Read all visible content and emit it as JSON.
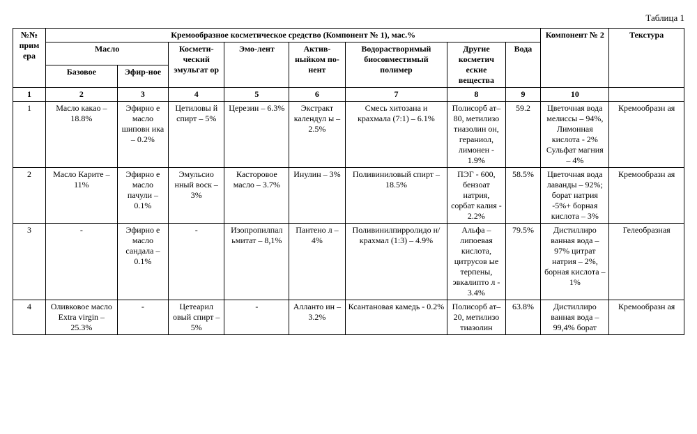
{
  "caption": "Таблица 1",
  "table": {
    "header": {
      "row1": {
        "num": "№№ прим ера",
        "component1": "Кремообразное косметическое средство (Компонент № 1), мас.%",
        "component2": "Компонент № 2",
        "texture": "Текстура"
      },
      "row2": {
        "oil": "Масло",
        "emulsifier": "Космети-ческий эмульгат ор",
        "emollient": "Эмо-лент",
        "active": "Актив-ныйком по-нент",
        "polymer": "Водорастворимый биосовместимый полимер",
        "other": "Другие косметич еские вещества",
        "water": "Вода"
      },
      "row3": {
        "base": "Базовое",
        "essential": "Эфир-ное"
      },
      "numrow": {
        "c1": "1",
        "c2": "2",
        "c3": "3",
        "c4": "4",
        "c5": "5",
        "c6": "6",
        "c7": "7",
        "c8": "8",
        "c9": "9",
        "c10": "10",
        "c11": ""
      }
    },
    "rows": [
      {
        "n": "1",
        "base": "Масло какао – 18.8%",
        "essential": "Эфирно е масло шиповн ика – 0.2%",
        "emulsifier": "Цетиловы й спирт – 5%",
        "emollient": "Церезин – 6.3%",
        "active": "Экстракт календул ы – 2.5%",
        "polymer": "Смесь хитозана и крахмала (7:1) – 6.1%",
        "other": "Полисорб ат–80, метилизо тиазолин он, гераниол, лимонен - 1.9%",
        "water": "59.2",
        "comp2": "Цветочная вода мелиссы – 94%, Лимонная кислота - 2% Сульфат магния – 4%",
        "texture": "Кремообразн ая"
      },
      {
        "n": "2",
        "base": "Масло Карите – 11%",
        "essential": "Эфирно е масло пачули – 0.1%",
        "emulsifier": "Эмульсио нный воск – 3%",
        "emollient": "Касторовое масло – 3.7%",
        "active": "Инулин – 3%",
        "polymer": "Поливиниловый спирт – 18.5%",
        "other": "ПЭГ - 600, бензоат натрия, сорбат калия - 2.2%",
        "water": "58.5%",
        "comp2": "Цветочная вода лаванды – 92%; борат натрия -5%+ борная кислота – 3%",
        "texture": "Кремообразн ая"
      },
      {
        "n": "3",
        "base": "-",
        "essential": "Эфирно е масло сандала – 0.1%",
        "emulsifier": "-",
        "emollient": "Изопропилпал ьмитат – 8,1%",
        "active": "Пантено л – 4%",
        "polymer": "Поливинилпирролидо н/крахмал (1:3) – 4.9%",
        "other": "Альфа – липоевая кислота, цитрусов ые терпены, эвкалипто л - 3.4%",
        "water": "79.5%",
        "comp2": "Дистиллиро ванная вода –97% цитрат натрия – 2%, борная кислота – 1%",
        "texture": "Гелеобразная"
      },
      {
        "n": "4",
        "base": "Оливковое масло Extra virgin – 25.3%",
        "essential": "-",
        "emulsifier": "Цетеарил овый спирт – 5%",
        "emollient": "-",
        "active": "Алланто ин – 3.2%",
        "polymer": "Ксантановая камедь - 0.2%",
        "other": "Полисорб ат–20, метилизо тиазолин",
        "water": "63.8%",
        "comp2": "Дистиллиро ванная вода – 99,4% борат",
        "texture": "Кремообразн ая"
      }
    ]
  },
  "style": {
    "font_family": "Times New Roman",
    "font_size_pt": 12,
    "caption_font_size_pt": 13,
    "text_color": "#000000",
    "background_color": "#ffffff",
    "border_color": "#000000",
    "cell_padding_px": "2px 4px",
    "column_widths_pct": {
      "num": 4.8,
      "base": 10.5,
      "essential": 7.5,
      "emulsifier": 8.2,
      "emollient": 9.5,
      "active": 8.2,
      "polymer": 15,
      "other": 8.5,
      "water": 5.2,
      "comp2": 10,
      "texture": 11
    }
  }
}
